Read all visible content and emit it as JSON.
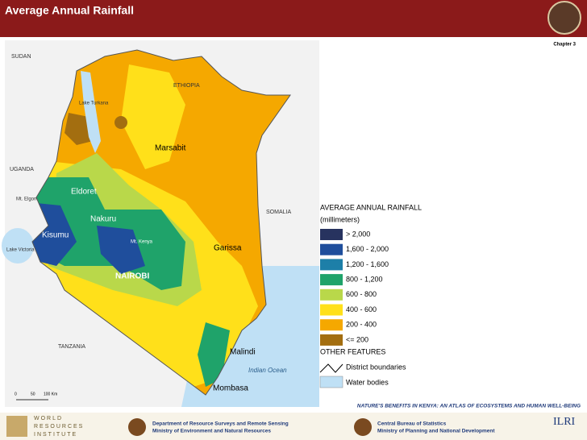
{
  "header": {
    "title": "Average Annual Rainfall",
    "chapter": "Chapter 3"
  },
  "map": {
    "labels": [
      "SUDAN",
      "ETHIOPIA",
      "Lake Turkana",
      "Marsabit",
      "UGANDA",
      "Mt. Elgon",
      "Eldoret",
      "Kisumu",
      "Lake Victoria",
      "Nakuru",
      "Mt. Kenya",
      "NAIROBI",
      "Garissa",
      "SOMALIA",
      "TANZANIA",
      "Malindi",
      "Indian Ocean",
      "Mombasa"
    ],
    "scale": [
      "0",
      "50",
      "100 Km"
    ]
  },
  "legend": {
    "title": "AVERAGE ANNUAL RAINFALL",
    "unit": "(millimeters)",
    "classes": [
      {
        "label": "> 2,000",
        "color": "#27335f"
      },
      {
        "label": "1,600 - 2,000",
        "color": "#1f4e9c"
      },
      {
        "label": "1,200 - 1,600",
        "color": "#1d7fa8"
      },
      {
        "label": "800 - 1,200",
        "color": "#1fa36a"
      },
      {
        "label": "600 - 800",
        "color": "#b9d84a"
      },
      {
        "label": "400 - 600",
        "color": "#ffe01a"
      },
      {
        "label": "200 - 400",
        "color": "#f5a800"
      },
      {
        "label": "<= 200",
        "color": "#a36e10"
      }
    ],
    "other_title": "OTHER FEATURES",
    "features": [
      "District boundaries",
      "Water bodies"
    ]
  },
  "footer": {
    "atlas": "NATURE'S BENEFITS IN KENYA: AN ATLAS OF ECOSYSTEMS AND HUMAN WELL-BEING",
    "wri": [
      "WORLD",
      "RESOURCES",
      "INSTITUTE"
    ],
    "left": [
      "Department of Resource Surveys and Remote Sensing",
      "Ministry of Environment and Natural Resources"
    ],
    "right": [
      "Central Bureau of Statistics",
      "Ministry of Planning and National Development"
    ],
    "ilri": "ILRI"
  }
}
